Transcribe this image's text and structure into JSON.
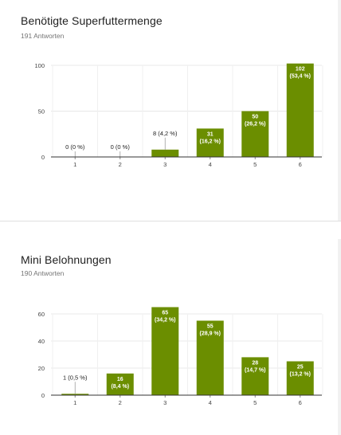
{
  "charts": [
    {
      "title": "Benötigte Superfuttermenge",
      "responses": "191 Antworten"
    },
    {
      "title": "Mini Belohnungen",
      "responses": "190 Antworten"
    }
  ],
  "colors": {
    "bar": "#6b8e00",
    "grid": "#e8e8e8",
    "axis": "#333333"
  },
  "chart_data": [
    {
      "type": "bar",
      "title": "Benötigte Superfuttermenge",
      "categories": [
        "1",
        "2",
        "3",
        "4",
        "5",
        "6"
      ],
      "values": [
        0,
        0,
        8,
        31,
        50,
        102
      ],
      "labels": [
        [
          "0 (0 %)"
        ],
        [
          "0 (0 %)"
        ],
        [
          "8 (4,2 %)"
        ],
        [
          "31",
          "(16,2 %)"
        ],
        [
          "50",
          "(26,2 %)"
        ],
        [
          "102",
          "(53,4 %)"
        ]
      ],
      "ylim": [
        0,
        100
      ],
      "yticks": [
        0,
        50,
        100
      ],
      "grid": true,
      "xlabel": "",
      "ylabel": ""
    },
    {
      "type": "bar",
      "title": "Mini Belohnungen",
      "categories": [
        "1",
        "2",
        "3",
        "4",
        "5",
        "6"
      ],
      "values": [
        1,
        16,
        65,
        55,
        28,
        25
      ],
      "labels": [
        [
          "1 (0,5 %)"
        ],
        [
          "16",
          "(8,4 %)"
        ],
        [
          "65",
          "(34,2 %)"
        ],
        [
          "55",
          "(28,9 %)"
        ],
        [
          "28",
          "(14,7 %)"
        ],
        [
          "25",
          "(13,2 %)"
        ]
      ],
      "ylim": [
        0,
        60
      ],
      "yticks": [
        0,
        20,
        40,
        60
      ],
      "grid": true,
      "xlabel": "",
      "ylabel": ""
    }
  ]
}
